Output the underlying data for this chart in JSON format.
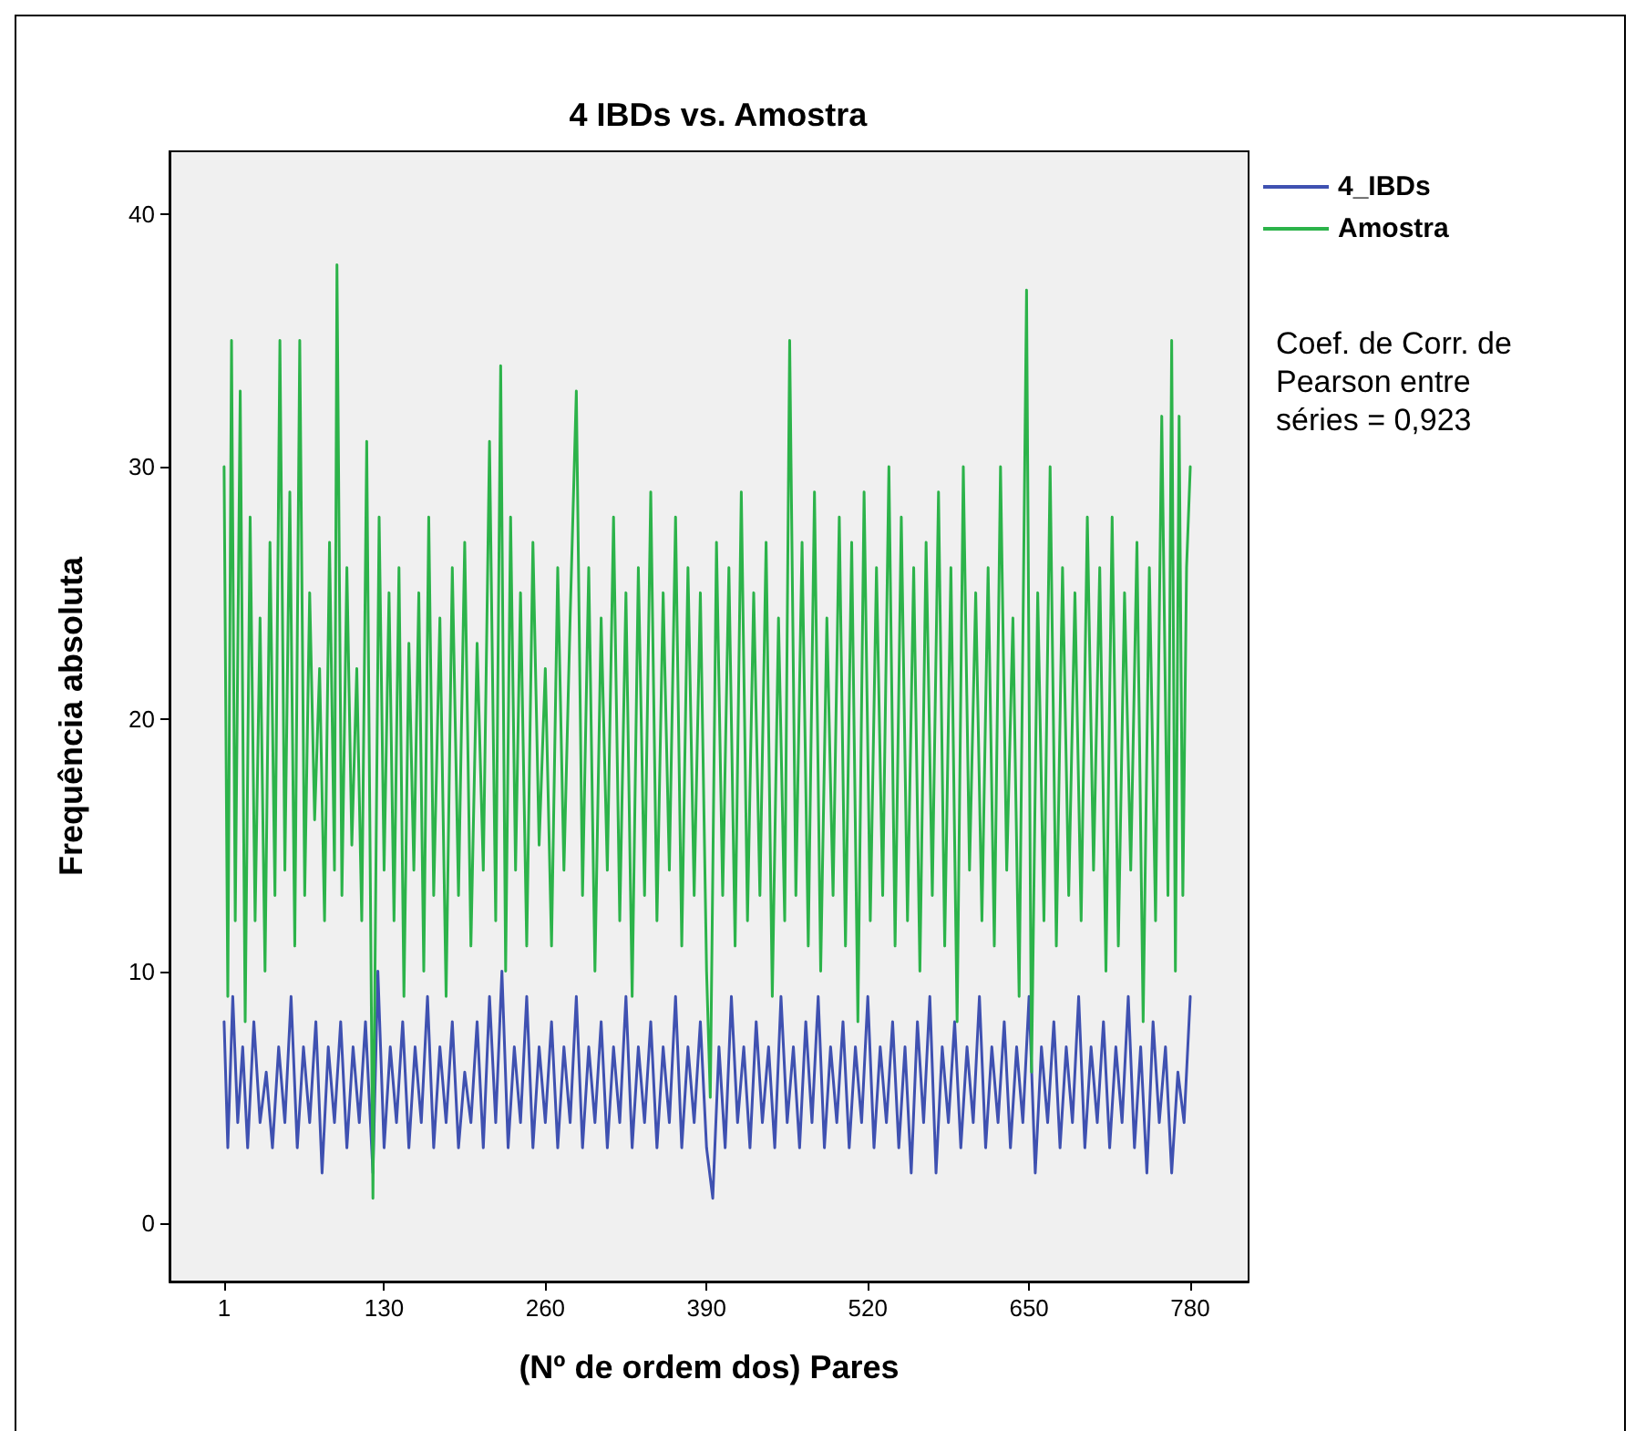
{
  "chart_data": {
    "type": "line",
    "title": "4 IBDs vs. Amostra",
    "xlabel": "(Nº de ordem dos) Pares",
    "ylabel": "Frequência absoluta",
    "xlim": [
      -43,
      827
    ],
    "xticks": [
      1,
      130,
      260,
      390,
      520,
      650,
      780
    ],
    "ylim": [
      -2.3,
      42.5
    ],
    "yticks": [
      0,
      10,
      20,
      30,
      40
    ],
    "grid": false,
    "legend": "top right",
    "marker": "none",
    "line_style": "solid",
    "annotations": [
      "Coef. de Corr. de Pearson entre séries = 0,923"
    ],
    "series": [
      {
        "name": "4_IBDs",
        "color": "#3f51b1",
        "x": [
          1,
          4,
          8,
          12,
          16,
          20,
          25,
          30,
          35,
          40,
          45,
          50,
          55,
          60,
          65,
          70,
          75,
          80,
          85,
          90,
          95,
          100,
          105,
          110,
          115,
          121,
          125,
          130,
          135,
          140,
          145,
          150,
          155,
          160,
          165,
          170,
          175,
          180,
          185,
          190,
          195,
          200,
          205,
          210,
          215,
          220,
          225,
          230,
          235,
          240,
          245,
          250,
          255,
          260,
          265,
          270,
          275,
          280,
          285,
          290,
          295,
          300,
          305,
          310,
          315,
          320,
          325,
          330,
          335,
          340,
          345,
          350,
          355,
          360,
          365,
          370,
          375,
          380,
          385,
          390,
          395,
          400,
          405,
          410,
          415,
          420,
          425,
          430,
          435,
          440,
          445,
          450,
          455,
          460,
          465,
          470,
          475,
          480,
          485,
          490,
          495,
          500,
          505,
          510,
          515,
          520,
          525,
          530,
          535,
          540,
          545,
          550,
          555,
          560,
          565,
          570,
          575,
          580,
          585,
          590,
          595,
          600,
          605,
          610,
          615,
          620,
          625,
          630,
          635,
          640,
          645,
          650,
          655,
          660,
          665,
          670,
          675,
          680,
          685,
          690,
          695,
          700,
          705,
          710,
          715,
          720,
          725,
          730,
          735,
          740,
          745,
          750,
          755,
          760,
          765,
          770,
          775,
          780
        ],
        "values": [
          8,
          3,
          9,
          4,
          7,
          3,
          8,
          4,
          6,
          3,
          7,
          4,
          9,
          3,
          7,
          4,
          8,
          2,
          7,
          4,
          8,
          3,
          7,
          4,
          8,
          2,
          10,
          3,
          7,
          4,
          8,
          3,
          7,
          4,
          9,
          3,
          7,
          4,
          8,
          3,
          6,
          4,
          8,
          3,
          9,
          4,
          10,
          3,
          7,
          4,
          9,
          3,
          7,
          4,
          8,
          3,
          7,
          4,
          9,
          3,
          7,
          4,
          8,
          3,
          7,
          4,
          9,
          3,
          7,
          4,
          8,
          3,
          7,
          4,
          9,
          3,
          7,
          4,
          8,
          3,
          1,
          7,
          3,
          9,
          4,
          7,
          3,
          8,
          4,
          7,
          3,
          9,
          4,
          7,
          3,
          8,
          4,
          9,
          3,
          7,
          4,
          8,
          3,
          7,
          4,
          9,
          3,
          7,
          4,
          8,
          3,
          7,
          2,
          8,
          4,
          9,
          2,
          7,
          4,
          8,
          3,
          7,
          4,
          9,
          3,
          7,
          4,
          8,
          3,
          7,
          4,
          9,
          2,
          7,
          4,
          8,
          3,
          7,
          4,
          9,
          3,
          7,
          4,
          8,
          3,
          7,
          4,
          9,
          3,
          7,
          2,
          8,
          4,
          7,
          2,
          6,
          4,
          9
        ]
      },
      {
        "name": "Amostra",
        "color": "#2cb34a",
        "x": [
          1,
          4,
          7,
          10,
          14,
          18,
          22,
          26,
          30,
          34,
          38,
          42,
          46,
          50,
          54,
          58,
          62,
          66,
          70,
          74,
          78,
          82,
          86,
          90,
          92,
          96,
          100,
          104,
          108,
          112,
          116,
          121,
          126,
          130,
          134,
          138,
          142,
          146,
          150,
          154,
          158,
          162,
          166,
          170,
          175,
          180,
          185,
          190,
          195,
          200,
          205,
          210,
          215,
          220,
          224,
          228,
          232,
          236,
          240,
          245,
          250,
          255,
          260,
          265,
          270,
          275,
          280,
          285,
          290,
          295,
          300,
          305,
          310,
          315,
          320,
          325,
          330,
          335,
          340,
          345,
          350,
          355,
          360,
          365,
          370,
          375,
          380,
          385,
          390,
          393,
          398,
          403,
          408,
          413,
          418,
          423,
          428,
          433,
          438,
          443,
          448,
          453,
          457,
          462,
          467,
          472,
          477,
          482,
          487,
          492,
          497,
          502,
          507,
          512,
          517,
          522,
          527,
          532,
          537,
          542,
          547,
          552,
          557,
          562,
          567,
          572,
          577,
          582,
          587,
          592,
          597,
          602,
          607,
          612,
          617,
          622,
          627,
          632,
          637,
          642,
          648,
          652,
          657,
          662,
          667,
          672,
          677,
          682,
          687,
          692,
          697,
          702,
          707,
          712,
          717,
          722,
          727,
          732,
          737,
          742,
          747,
          752,
          757,
          762,
          765,
          768,
          771,
          774,
          777,
          780
        ],
        "values": [
          30,
          9,
          35,
          12,
          33,
          8,
          28,
          12,
          24,
          10,
          27,
          13,
          35,
          14,
          29,
          11,
          35,
          13,
          25,
          16,
          22,
          12,
          27,
          14,
          38,
          13,
          26,
          15,
          22,
          12,
          31,
          1,
          28,
          14,
          25,
          12,
          26,
          9,
          23,
          14,
          25,
          10,
          28,
          13,
          24,
          9,
          26,
          13,
          27,
          11,
          23,
          14,
          31,
          12,
          34,
          10,
          28,
          14,
          25,
          11,
          27,
          15,
          22,
          11,
          26,
          14,
          24,
          33,
          13,
          26,
          10,
          24,
          14,
          28,
          12,
          25,
          9,
          26,
          13,
          29,
          12,
          25,
          14,
          28,
          11,
          26,
          13,
          25,
          10,
          5,
          27,
          13,
          26,
          11,
          29,
          12,
          25,
          13,
          27,
          9,
          24,
          12,
          35,
          13,
          27,
          11,
          29,
          10,
          24,
          13,
          28,
          11,
          27,
          8,
          29,
          12,
          26,
          13,
          30,
          11,
          28,
          12,
          26,
          10,
          27,
          13,
          29,
          11,
          26,
          8,
          30,
          14,
          25,
          12,
          26,
          11,
          30,
          14,
          24,
          9,
          37,
          6,
          25,
          12,
          30,
          11,
          26,
          13,
          25,
          12,
          28,
          14,
          26,
          10,
          28,
          11,
          25,
          14,
          27,
          8,
          26,
          12,
          32,
          13,
          35,
          10,
          32,
          13,
          26,
          30
        ]
      }
    ]
  }
}
